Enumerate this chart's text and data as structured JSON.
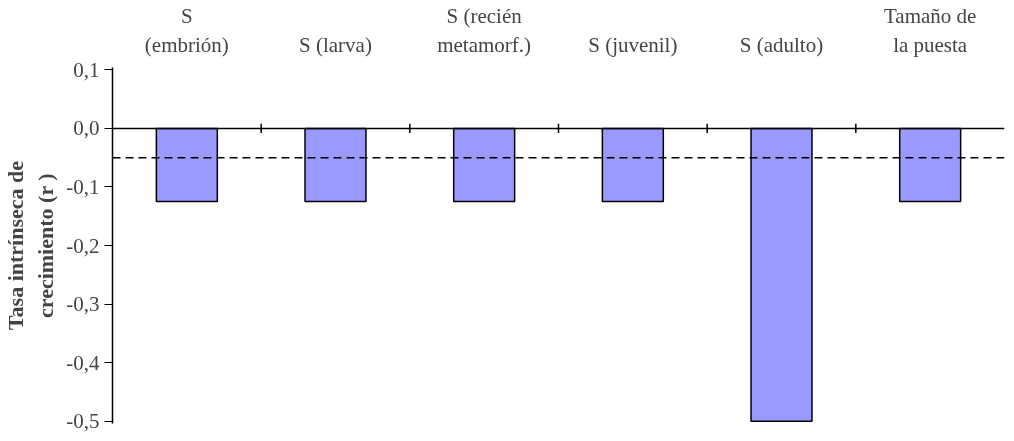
{
  "chart_data": {
    "type": "bar",
    "ylabel": "Tasa intrínseca de\ncrecimiento (r )",
    "categories": [
      "S\n(embrión)",
      "S (larva)",
      "S (recién\nmetamorf.)",
      "S (juvenil)",
      "S (adulto)",
      "Tamaño de\nla puesta"
    ],
    "values": [
      -0.125,
      -0.125,
      -0.125,
      -0.125,
      -0.5,
      -0.125
    ],
    "color": "#9999ff",
    "ylim": [
      -0.5,
      0.1
    ],
    "yticks": [
      {
        "value": 0.1,
        "label": "0,1"
      },
      {
        "value": 0.0,
        "label": "0,0"
      },
      {
        "value": -0.1,
        "label": "-0,1"
      },
      {
        "value": -0.2,
        "label": "-0,2"
      },
      {
        "value": -0.3,
        "label": "-0,3"
      },
      {
        "value": -0.4,
        "label": "-0,4"
      },
      {
        "value": -0.5,
        "label": "-0,5"
      }
    ],
    "ref_lines": [
      {
        "axis": "y",
        "value": -0.05,
        "color": "#000000",
        "line_style": "dashed"
      }
    ]
  }
}
